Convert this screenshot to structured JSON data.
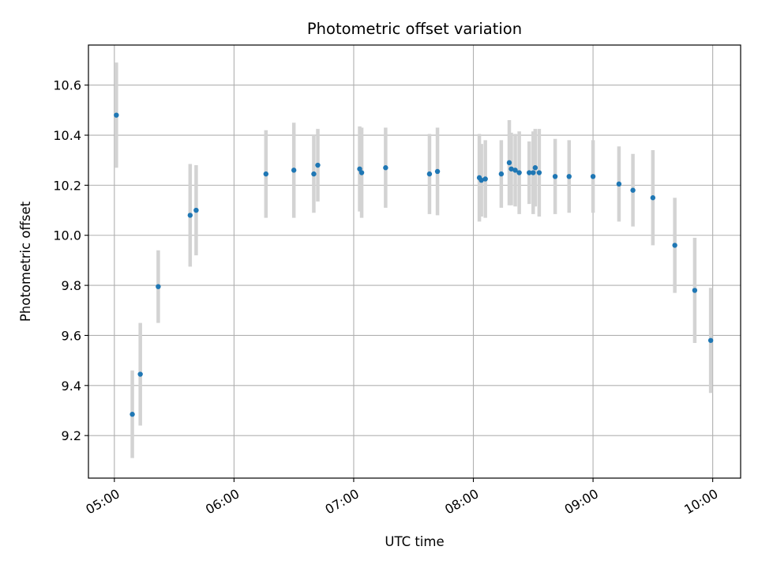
{
  "chart_data": {
    "type": "scatter",
    "title": "Photometric offset variation",
    "xlabel": "UTC time",
    "ylabel": "Photometric offset",
    "x_tick_labels": [
      "05:00",
      "06:00",
      "07:00",
      "08:00",
      "09:00",
      "10:00"
    ],
    "y_tick_labels": [
      "9.2",
      "9.4",
      "9.6",
      "9.8",
      "10.0",
      "10.2",
      "10.4",
      "10.6"
    ],
    "xlim": [
      "04:47",
      "10:14"
    ],
    "ylim": [
      9.03,
      10.76
    ],
    "grid": true,
    "series": [
      {
        "marker_color": "#1f77b4",
        "errorbar_color": "#d3d3d3",
        "points": [
          {
            "x": "05:01",
            "y": 10.48,
            "err": 0.21
          },
          {
            "x": "05:09",
            "y": 9.285,
            "err": 0.175
          },
          {
            "x": "05:13",
            "y": 9.445,
            "err": 0.205
          },
          {
            "x": "05:22",
            "y": 9.795,
            "err": 0.145
          },
          {
            "x": "05:38",
            "y": 10.08,
            "err": 0.205
          },
          {
            "x": "05:41",
            "y": 10.1,
            "err": 0.18
          },
          {
            "x": "06:16",
            "y": 10.245,
            "err": 0.175
          },
          {
            "x": "06:30",
            "y": 10.26,
            "err": 0.19
          },
          {
            "x": "06:40",
            "y": 10.245,
            "err": 0.155
          },
          {
            "x": "06:42",
            "y": 10.28,
            "err": 0.145
          },
          {
            "x": "07:03",
            "y": 10.265,
            "err": 0.17
          },
          {
            "x": "07:04",
            "y": 10.25,
            "err": 0.18
          },
          {
            "x": "07:16",
            "y": 10.27,
            "err": 0.16
          },
          {
            "x": "07:38",
            "y": 10.245,
            "err": 0.16
          },
          {
            "x": "07:42",
            "y": 10.255,
            "err": 0.175
          },
          {
            "x": "08:03",
            "y": 10.23,
            "err": 0.175
          },
          {
            "x": "08:04",
            "y": 10.22,
            "err": 0.145
          },
          {
            "x": "08:06",
            "y": 10.225,
            "err": 0.155
          },
          {
            "x": "08:14",
            "y": 10.245,
            "err": 0.135
          },
          {
            "x": "08:18",
            "y": 10.29,
            "err": 0.17
          },
          {
            "x": "08:19",
            "y": 10.265,
            "err": 0.145
          },
          {
            "x": "08:21",
            "y": 10.26,
            "err": 0.145
          },
          {
            "x": "08:23",
            "y": 10.25,
            "err": 0.165
          },
          {
            "x": "08:28",
            "y": 10.25,
            "err": 0.125
          },
          {
            "x": "08:30",
            "y": 10.25,
            "err": 0.165
          },
          {
            "x": "08:31",
            "y": 10.27,
            "err": 0.155
          },
          {
            "x": "08:33",
            "y": 10.25,
            "err": 0.175
          },
          {
            "x": "08:41",
            "y": 10.235,
            "err": 0.15
          },
          {
            "x": "08:48",
            "y": 10.235,
            "err": 0.145
          },
          {
            "x": "09:00",
            "y": 10.235,
            "err": 0.145
          },
          {
            "x": "09:13",
            "y": 10.205,
            "err": 0.15
          },
          {
            "x": "09:20",
            "y": 10.18,
            "err": 0.145
          },
          {
            "x": "09:30",
            "y": 10.15,
            "err": 0.19
          },
          {
            "x": "09:41",
            "y": 9.96,
            "err": 0.19
          },
          {
            "x": "09:51",
            "y": 9.78,
            "err": 0.21
          },
          {
            "x": "09:59",
            "y": 9.58,
            "err": 0.21
          }
        ]
      }
    ]
  }
}
